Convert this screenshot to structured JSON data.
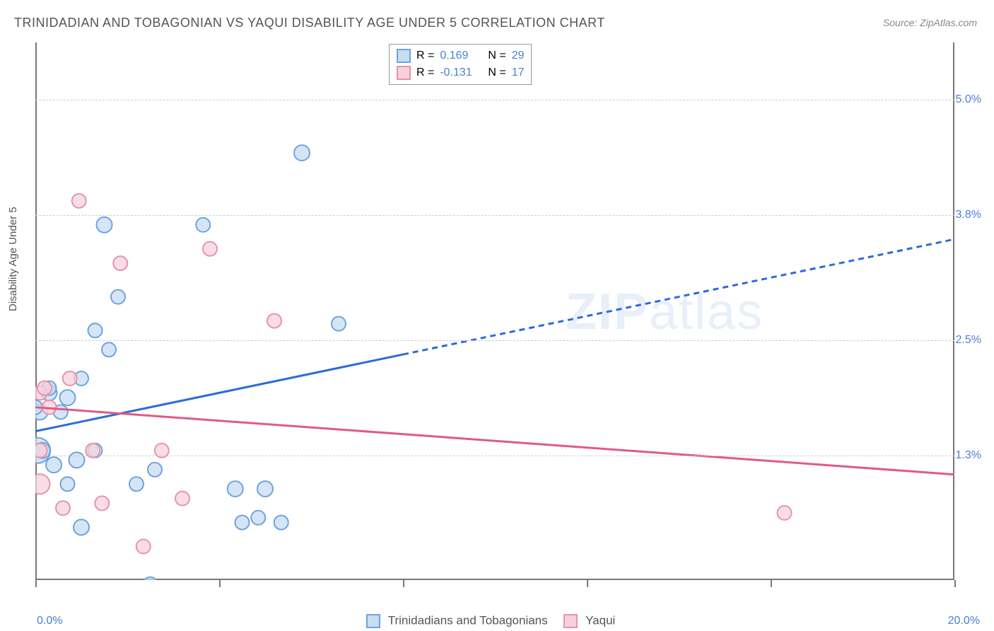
{
  "title": "TRINIDADIAN AND TOBAGONIAN VS YAQUI DISABILITY AGE UNDER 5 CORRELATION CHART",
  "source_label": "Source: ZipAtlas.com",
  "ylabel": "Disability Age Under 5",
  "watermark_a": "ZIP",
  "watermark_b": "atlas",
  "chart": {
    "type": "scatter",
    "background_color": "#ffffff",
    "grid_color": "#cccccc",
    "axis_color": "#777777",
    "xlim": [
      0,
      20
    ],
    "ylim": [
      0,
      5.6
    ],
    "x_axis_labels": [
      {
        "pos": 0.0,
        "label": "0.0%"
      },
      {
        "pos": 20.0,
        "label": "20.0%"
      }
    ],
    "x_ticks": [
      0,
      4,
      8,
      12,
      16,
      20
    ],
    "y_axis_labels": [
      {
        "pos": 1.3,
        "label": "1.3%"
      },
      {
        "pos": 2.5,
        "label": "2.5%"
      },
      {
        "pos": 3.8,
        "label": "3.8%"
      },
      {
        "pos": 5.0,
        "label": "5.0%"
      }
    ],
    "tick_label_color": "#4a7fd6",
    "series": [
      {
        "name": "Trinidadians and Tobagonians",
        "fill": "#c8dcf2",
        "stroke": "#6fa3e0",
        "line_color": "#2c6cd6",
        "r_value": "0.169",
        "n_value": "29",
        "trend": {
          "y_at_xmin": 1.55,
          "y_at_xmax": 3.55,
          "x_solid_until": 8.0
        },
        "points": [
          {
            "x": 0.05,
            "y": 1.35,
            "r": 18
          },
          {
            "x": 0.15,
            "y": 1.35,
            "r": 11
          },
          {
            "x": 0.1,
            "y": 1.75,
            "r": 11
          },
          {
            "x": 0.0,
            "y": 1.8,
            "r": 10
          },
          {
            "x": 0.3,
            "y": 1.95,
            "r": 11
          },
          {
            "x": 0.3,
            "y": 2.0,
            "r": 10
          },
          {
            "x": 1.0,
            "y": 0.55,
            "r": 11
          },
          {
            "x": 0.55,
            "y": 1.75,
            "r": 10
          },
          {
            "x": 0.4,
            "y": 1.2,
            "r": 11
          },
          {
            "x": 0.7,
            "y": 1.9,
            "r": 11
          },
          {
            "x": 1.0,
            "y": 2.1,
            "r": 10
          },
          {
            "x": 0.9,
            "y": 1.25,
            "r": 11
          },
          {
            "x": 1.3,
            "y": 2.6,
            "r": 10
          },
          {
            "x": 1.5,
            "y": 3.7,
            "r": 11
          },
          {
            "x": 1.6,
            "y": 2.4,
            "r": 10
          },
          {
            "x": 1.8,
            "y": 2.95,
            "r": 10
          },
          {
            "x": 2.2,
            "y": 1.0,
            "r": 10
          },
          {
            "x": 2.5,
            "y": -0.05,
            "r": 11
          },
          {
            "x": 2.6,
            "y": 1.15,
            "r": 10
          },
          {
            "x": 3.65,
            "y": 3.7,
            "r": 10
          },
          {
            "x": 4.35,
            "y": 0.95,
            "r": 11
          },
          {
            "x": 4.5,
            "y": 0.6,
            "r": 10
          },
          {
            "x": 4.85,
            "y": 0.65,
            "r": 10
          },
          {
            "x": 5.0,
            "y": 0.95,
            "r": 11
          },
          {
            "x": 5.35,
            "y": 0.6,
            "r": 10
          },
          {
            "x": 5.8,
            "y": 4.45,
            "r": 11
          },
          {
            "x": 6.6,
            "y": 2.67,
            "r": 10
          },
          {
            "x": 1.3,
            "y": 1.35,
            "r": 10
          },
          {
            "x": 0.7,
            "y": 1.0,
            "r": 10
          }
        ]
      },
      {
        "name": "Yaqui",
        "fill": "#f6d1dc",
        "stroke": "#e694ac",
        "line_color": "#e15a85",
        "r_value": "-0.131",
        "n_value": "17",
        "trend": {
          "y_at_xmin": 1.8,
          "y_at_xmax": 1.1,
          "x_solid_until": 20.0
        },
        "points": [
          {
            "x": 0.1,
            "y": 1.95,
            "r": 10
          },
          {
            "x": 0.1,
            "y": 1.0,
            "r": 14
          },
          {
            "x": 0.1,
            "y": 1.35,
            "r": 10
          },
          {
            "x": 0.6,
            "y": 0.75,
            "r": 10
          },
          {
            "x": 0.75,
            "y": 2.1,
            "r": 10
          },
          {
            "x": 0.95,
            "y": 3.95,
            "r": 10
          },
          {
            "x": 1.25,
            "y": 1.35,
            "r": 10
          },
          {
            "x": 1.45,
            "y": 0.8,
            "r": 10
          },
          {
            "x": 1.85,
            "y": 3.3,
            "r": 10
          },
          {
            "x": 2.35,
            "y": 0.35,
            "r": 10
          },
          {
            "x": 2.75,
            "y": 1.35,
            "r": 10
          },
          {
            "x": 3.2,
            "y": 0.85,
            "r": 10
          },
          {
            "x": 3.8,
            "y": 3.45,
            "r": 10
          },
          {
            "x": 5.2,
            "y": 2.7,
            "r": 10
          },
          {
            "x": 16.3,
            "y": 0.7,
            "r": 10
          },
          {
            "x": 0.3,
            "y": 1.8,
            "r": 10
          },
          {
            "x": 0.2,
            "y": 2.0,
            "r": 10
          }
        ]
      }
    ]
  },
  "legend_top": {
    "r_label": "R =",
    "n_label": "N ="
  },
  "legend_bottom": {
    "series_a": "Trinidadians and Tobagonians",
    "series_b": "Yaqui"
  }
}
